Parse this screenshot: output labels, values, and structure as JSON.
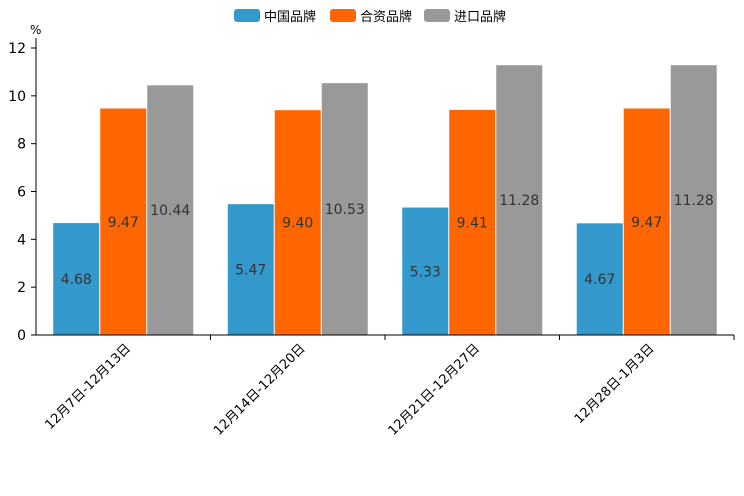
{
  "chart_data": {
    "type": "bar",
    "unit": "%",
    "categories": [
      "12月7日-12月13日",
      "12月14日-12月20日",
      "12月21日-12月27日",
      "12月28日-1月3日"
    ],
    "series": [
      {
        "name": "中国品牌",
        "color": "#3399cc",
        "values": [
          4.68,
          5.47,
          5.33,
          4.67
        ],
        "labels": [
          "4.68",
          "5.47",
          "5.33",
          "4.67"
        ]
      },
      {
        "name": "合资品牌",
        "color": "#ff6600",
        "values": [
          9.47,
          9.4,
          9.41,
          9.47
        ],
        "labels": [
          "9.47",
          "9.40",
          "9.41",
          "9.47"
        ]
      },
      {
        "name": "进口品牌",
        "color": "#999999",
        "values": [
          10.44,
          10.53,
          11.28,
          11.28
        ],
        "labels": [
          "10.44",
          "10.53",
          "11.28",
          "11.28"
        ]
      }
    ],
    "yticks": [
      "0",
      "2",
      "4",
      "6",
      "8",
      "10",
      "12"
    ],
    "ylim": [
      0,
      12
    ],
    "legend": "top-center",
    "grid": false
  }
}
